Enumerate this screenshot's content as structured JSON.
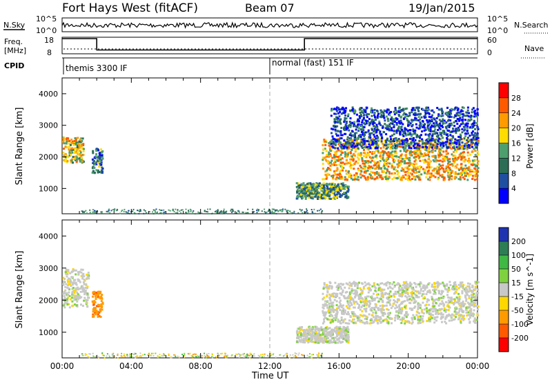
{
  "header": {
    "station": "Fort Hays West (fitACF)",
    "beam": "Beam 07",
    "date": "19/Jan/2015"
  },
  "nsky_panel": {
    "left_label": "N.Sky",
    "right_label": "N.Search",
    "y_ticks_left": [
      "10^5",
      "10^0"
    ],
    "y_ticks_right": [
      "10^5",
      "10^0"
    ]
  },
  "freq_panel": {
    "left_label_1": "Freq.",
    "left_label_2": "[MHz]",
    "right_label": "Nave",
    "y_ticks_left": [
      "18",
      "8"
    ],
    "y_ticks_right": [
      "60",
      "0"
    ],
    "freq_line": [
      {
        "x": 0,
        "y": 18
      },
      {
        "x": 2,
        "y": 18
      },
      {
        "x": 2,
        "y": 10.5
      },
      {
        "x": 14,
        "y": 10.5
      },
      {
        "x": 14,
        "y": 18
      },
      {
        "x": 24,
        "y": 18
      }
    ]
  },
  "cpid_panel": {
    "label": "CPID",
    "mode_left": "themis 3300 IF",
    "mode_right": "normal (fast) 151 IF",
    "mode_change_hour": 12
  },
  "power_colorbar": {
    "title": "Power [dB]",
    "ticks": [
      "28",
      "24",
      "20",
      "16",
      "12",
      "8",
      "4"
    ],
    "colors": [
      "#ff0000",
      "#ff5a00",
      "#ff9b00",
      "#ffdc00",
      "#4d9f6e",
      "#2c6e55",
      "#1f4fa0",
      "#0000ff"
    ]
  },
  "velocity_colorbar": {
    "title": "Velocity [m s^-1]",
    "ticks": [
      "200",
      "100",
      "50",
      "15",
      "-15",
      "-50",
      "-100",
      "-200"
    ],
    "colors": [
      "#1f33b0",
      "#2d7e55",
      "#3fb844",
      "#7fd23e",
      "#c8c8c8",
      "#ffd700",
      "#ff9b00",
      "#ff5a00",
      "#ff0000"
    ]
  },
  "chart_data": [
    {
      "type": "heatmap",
      "name": "Power",
      "ylabel": "Slant Range [km]",
      "xlabel": "",
      "xlim": [
        0,
        24
      ],
      "ylim": [
        200,
        4500
      ],
      "y_ticks": [
        1000,
        2000,
        3000,
        4000
      ],
      "x_ticks": [
        "00:00",
        "04:00",
        "08:00",
        "12:00",
        "16:00",
        "20:00",
        "00:00"
      ],
      "regions": [
        {
          "t0": 0.0,
          "t1": 1.2,
          "r0": 1850,
          "r1": 2650,
          "value": 18
        },
        {
          "t0": 1.7,
          "t1": 2.3,
          "r0": 1500,
          "r1": 2300,
          "value": 10
        },
        {
          "t0": 15.0,
          "t1": 24.0,
          "r0": 1300,
          "r1": 2600,
          "value": 20
        },
        {
          "t0": 13.5,
          "t1": 16.5,
          "r0": 700,
          "r1": 1200,
          "value": 12
        },
        {
          "t0": 15.5,
          "t1": 24.0,
          "r0": 2300,
          "r1": 3600,
          "value": 6
        }
      ]
    },
    {
      "type": "heatmap",
      "name": "Velocity",
      "ylabel": "Slant Range [km]",
      "xlabel": "Time UT",
      "xlim": [
        0,
        24
      ],
      "ylim": [
        200,
        4500
      ],
      "y_ticks": [
        1000,
        2000,
        3000,
        4000
      ],
      "x_ticks": [
        "00:00",
        "04:00",
        "08:00",
        "12:00",
        "16:00",
        "20:00",
        "00:00"
      ],
      "regions": [
        {
          "t0": 0.0,
          "t1": 1.5,
          "r0": 1800,
          "r1": 3000,
          "value": 0
        },
        {
          "t0": 1.7,
          "t1": 2.3,
          "r0": 1500,
          "r1": 2300,
          "value": -60
        },
        {
          "t0": 15.0,
          "t1": 24.0,
          "r0": 1300,
          "r1": 2600,
          "value": 0
        },
        {
          "t0": 13.5,
          "t1": 16.5,
          "r0": 700,
          "r1": 1200,
          "value": 0
        }
      ]
    }
  ]
}
